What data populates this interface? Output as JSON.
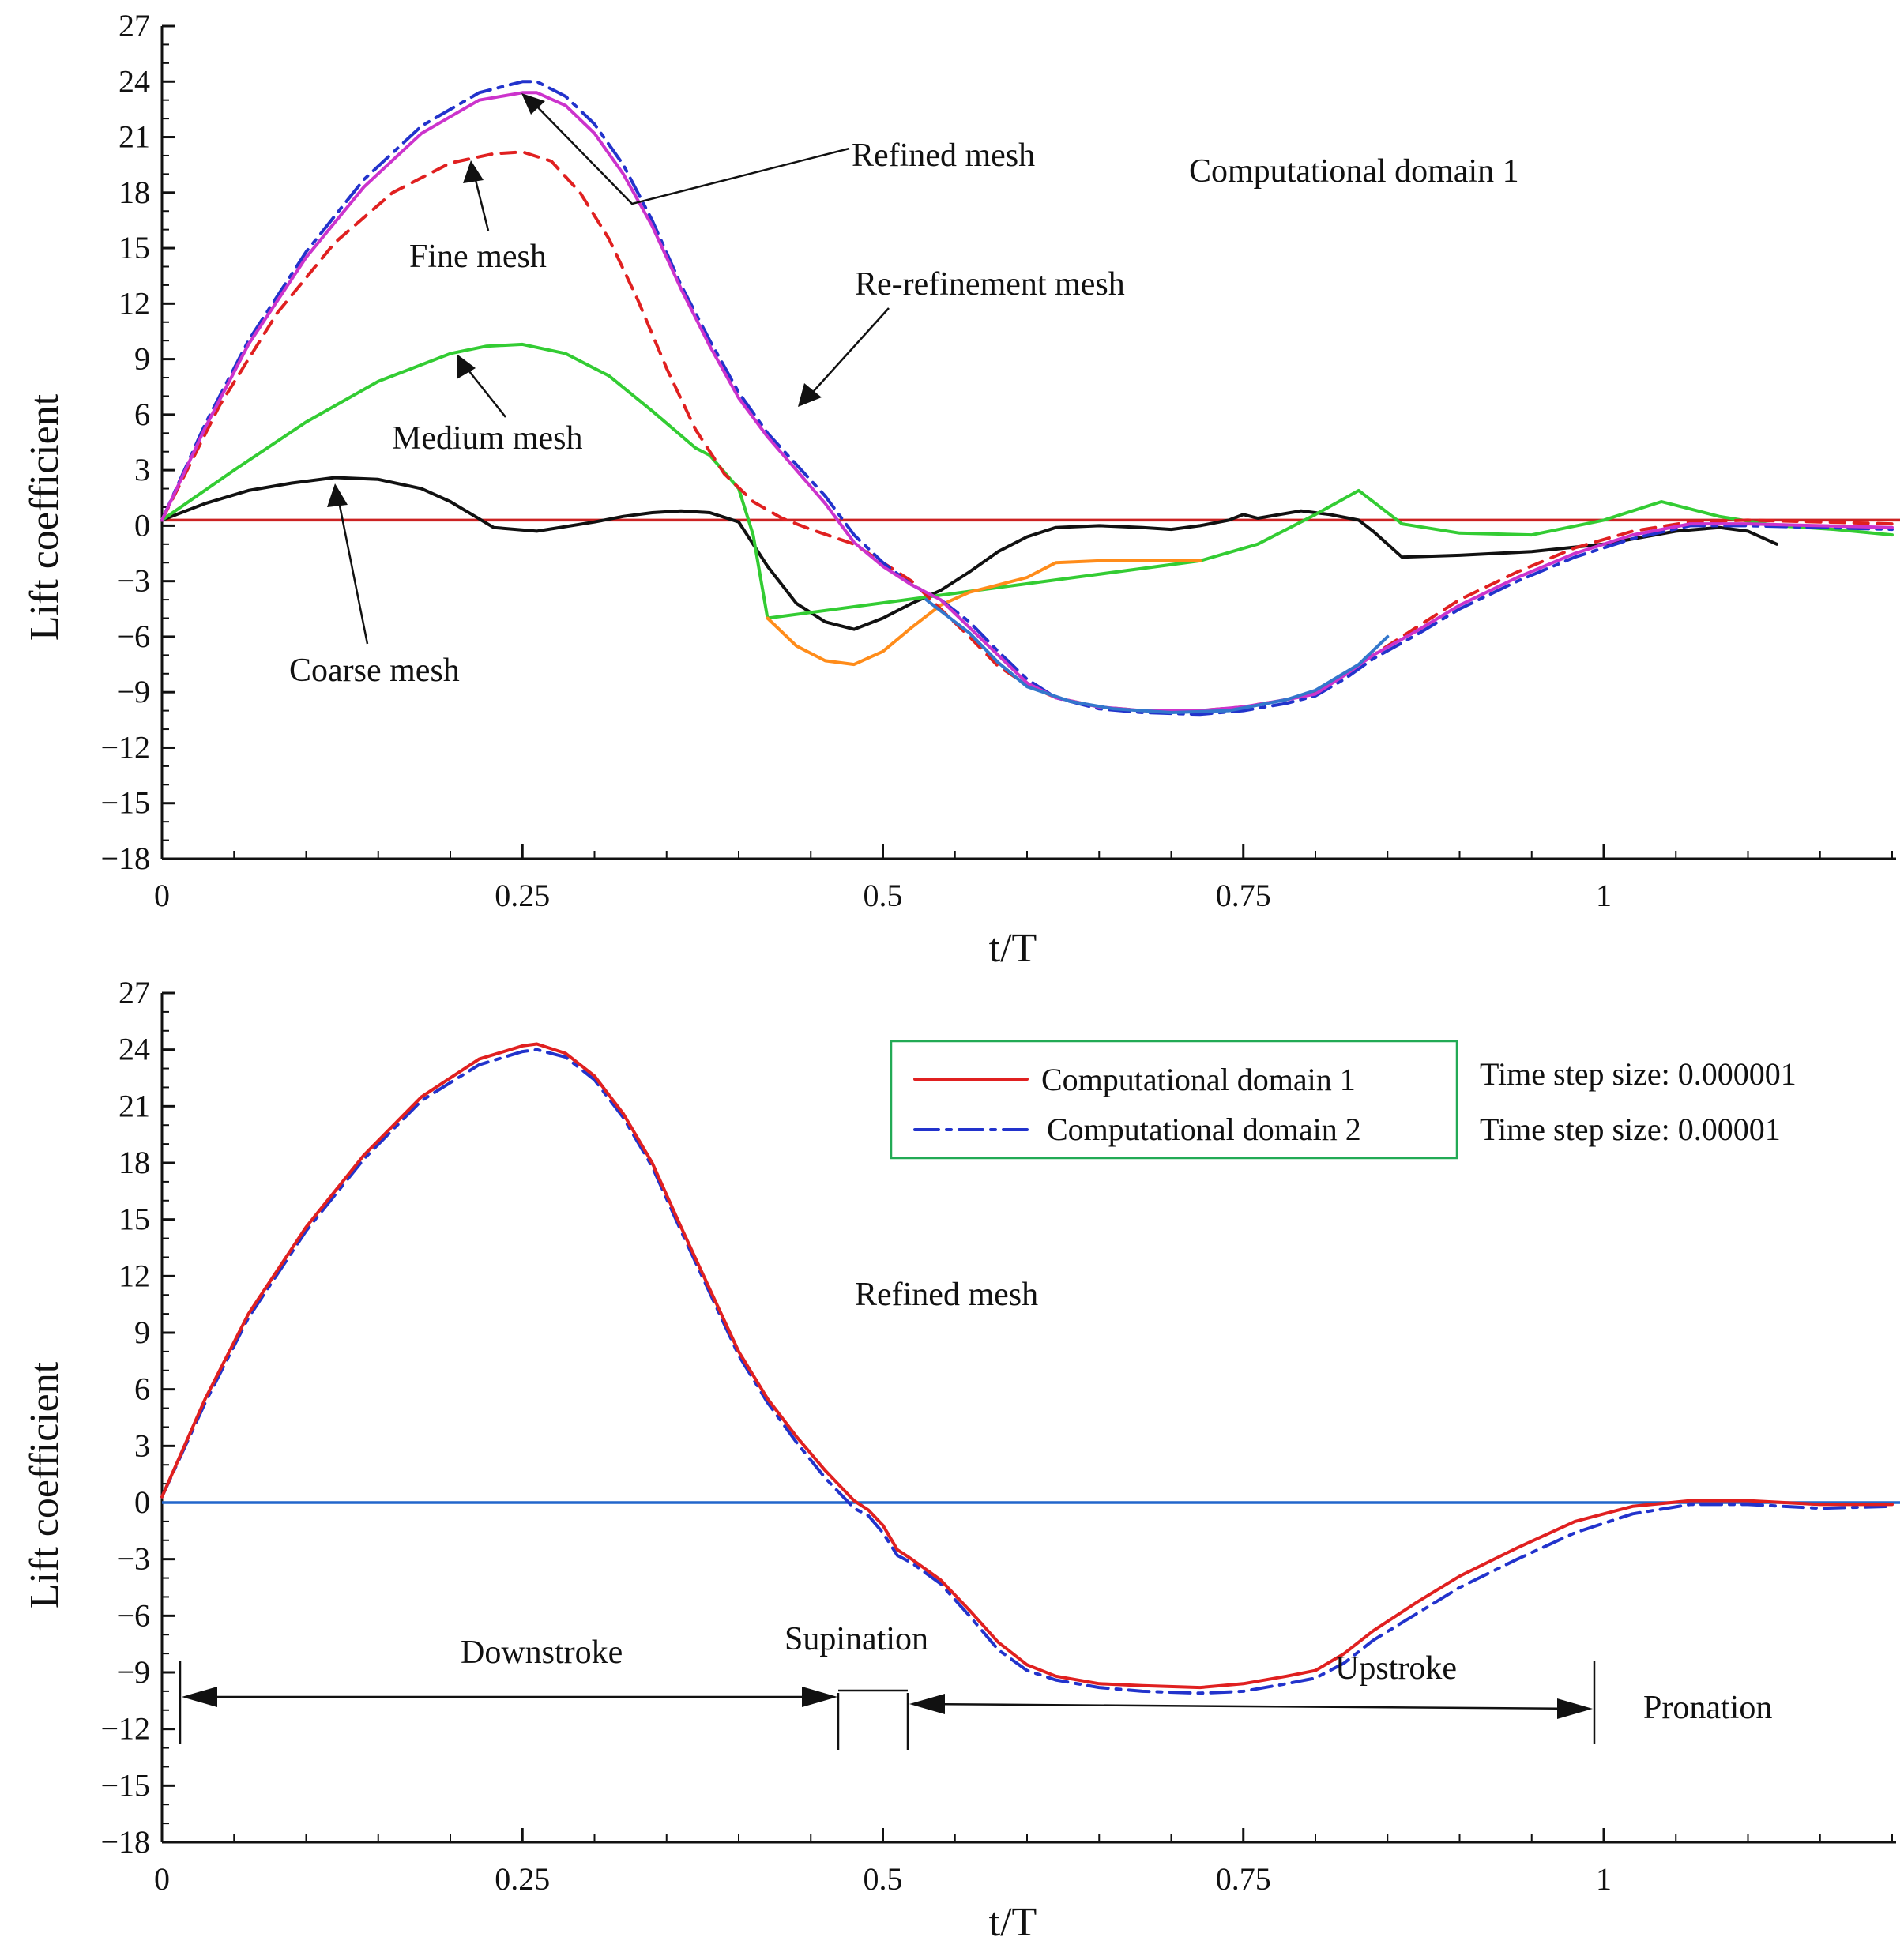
{
  "colors": {
    "coarse": "#111111",
    "medium": "#33cc33",
    "fine": "#e02020",
    "refined": "#cc33cc",
    "rerefined": "#2233cc",
    "orange": "#ff8c1a",
    "steelblue": "#3377cc",
    "zero_top": "#cc2222",
    "zero_bottom": "#2266cc",
    "legend_border": "#22aa55"
  },
  "chart_data": [
    {
      "type": "line",
      "xlabel": "t/T",
      "ylabel": "Lift coefficient",
      "xlim": [
        0,
        1.2
      ],
      "ylim": [
        -18,
        27
      ],
      "xticks": [
        0,
        0.25,
        0.5,
        0.75,
        1
      ],
      "xtick_labels": [
        "0",
        "0.25",
        "0.5",
        "0.75",
        "1"
      ],
      "yticks": [
        -18,
        -15,
        -12,
        -9,
        -6,
        -3,
        0,
        3,
        6,
        9,
        12,
        15,
        18,
        21,
        24,
        27
      ],
      "ytick_labels": [
        "−18",
        "−15",
        "−12",
        "−9",
        "−6",
        "−3",
        "0",
        "3",
        "6",
        "9",
        "12",
        "15",
        "18",
        "21",
        "24",
        "27"
      ],
      "baseline": 0.3,
      "series": [
        {
          "key": "coarse",
          "name": "Coarse mesh",
          "style": "solid",
          "x": [
            0,
            0.03,
            0.06,
            0.09,
            0.12,
            0.15,
            0.18,
            0.2,
            0.215,
            0.23,
            0.26,
            0.3,
            0.32,
            0.34,
            0.36,
            0.38,
            0.4,
            0.42,
            0.44,
            0.46,
            0.48,
            0.5,
            0.52,
            0.54,
            0.56,
            0.58,
            0.6,
            0.62,
            0.65,
            0.68,
            0.7,
            0.72,
            0.74,
            0.75,
            0.76,
            0.79,
            0.81,
            0.83,
            0.84,
            0.85,
            0.86,
            0.9,
            0.95,
            1.0,
            1.05,
            1.08,
            1.1,
            1.12
          ],
          "y": [
            0.3,
            1.2,
            1.9,
            2.3,
            2.6,
            2.5,
            2.0,
            1.3,
            0.6,
            -0.1,
            -0.3,
            0.2,
            0.5,
            0.7,
            0.8,
            0.7,
            0.2,
            -2.2,
            -4.2,
            -5.2,
            -5.6,
            -5.0,
            -4.2,
            -3.5,
            -2.5,
            -1.4,
            -0.6,
            -0.1,
            0.0,
            -0.1,
            -0.2,
            0.0,
            0.3,
            0.6,
            0.4,
            0.8,
            0.6,
            0.3,
            -0.3,
            -1.0,
            -1.7,
            -1.6,
            -1.4,
            -1.0,
            -0.3,
            -0.1,
            -0.3,
            -1.0
          ]
        },
        {
          "key": "medium",
          "name": "Medium mesh",
          "style": "solid",
          "x": [
            0,
            0.05,
            0.1,
            0.15,
            0.2,
            0.225,
            0.25,
            0.28,
            0.31,
            0.34,
            0.37,
            0.38,
            0.4,
            0.41,
            0.42,
            0.72,
            0.76,
            0.8,
            0.83,
            0.86,
            0.9,
            0.95,
            1.0,
            1.04,
            1.08,
            1.12,
            1.16,
            1.2
          ],
          "y": [
            0.3,
            3.0,
            5.6,
            7.8,
            9.3,
            9.7,
            9.8,
            9.3,
            8.1,
            6.2,
            4.2,
            3.8,
            2.0,
            -0.5,
            -5.0,
            -1.9,
            -1.0,
            0.6,
            1.9,
            0.1,
            -0.4,
            -0.5,
            0.3,
            1.3,
            0.5,
            0.0,
            -0.2,
            -0.5
          ]
        },
        {
          "key": "orange",
          "name": "",
          "style": "solid",
          "x": [
            0.42,
            0.44,
            0.46,
            0.48,
            0.5,
            0.52,
            0.54,
            0.56,
            0.58,
            0.6,
            0.62,
            0.65,
            0.68,
            0.7,
            0.72
          ],
          "y": [
            -5.0,
            -6.5,
            -7.3,
            -7.5,
            -6.8,
            -5.5,
            -4.3,
            -3.6,
            -3.2,
            -2.8,
            -2.0,
            -1.9,
            -1.9,
            -1.9,
            -1.9
          ]
        },
        {
          "key": "fine",
          "name": "Fine mesh",
          "style": "dashed",
          "x": [
            0,
            0.04,
            0.08,
            0.12,
            0.16,
            0.2,
            0.23,
            0.25,
            0.27,
            0.29,
            0.31,
            0.33,
            0.35,
            0.37,
            0.39,
            0.41,
            0.43,
            0.45,
            0.48,
            0.5,
            0.52,
            0.54,
            0.56,
            0.58,
            0.6,
            0.62,
            0.65,
            0.68,
            0.72,
            0.75,
            0.78,
            0.8,
            0.82,
            0.84,
            0.87,
            0.9,
            0.94,
            0.98,
            1.02,
            1.06,
            1.1,
            1.15,
            1.2
          ],
          "y": [
            0.3,
            6.5,
            11.5,
            15.3,
            18.0,
            19.6,
            20.1,
            20.2,
            19.7,
            18.0,
            15.5,
            12.2,
            8.5,
            5.2,
            2.8,
            1.3,
            0.4,
            -0.2,
            -1.0,
            -2.0,
            -3.0,
            -4.5,
            -6.0,
            -7.6,
            -8.6,
            -9.3,
            -9.8,
            -10.0,
            -10.0,
            -9.8,
            -9.4,
            -9.0,
            -8.0,
            -7.0,
            -5.5,
            -4.0,
            -2.5,
            -1.2,
            -0.3,
            0.2,
            0.3,
            0.2,
            0.1
          ]
        },
        {
          "key": "rerefined",
          "name": "Re-refinement mesh",
          "style": "dashdot",
          "x": [
            0,
            0.03,
            0.06,
            0.1,
            0.14,
            0.18,
            0.22,
            0.25,
            0.26,
            0.28,
            0.3,
            0.32,
            0.34,
            0.36,
            0.38,
            0.4,
            0.42,
            0.44,
            0.46,
            0.48,
            0.5,
            0.52,
            0.54,
            0.56,
            0.58,
            0.6,
            0.62,
            0.65,
            0.68,
            0.72,
            0.75,
            0.78,
            0.8,
            0.82,
            0.84,
            0.87,
            0.9,
            0.94,
            0.98,
            1.02,
            1.06,
            1.1,
            1.15,
            1.2
          ],
          "y": [
            0.3,
            5.5,
            10.0,
            14.8,
            18.7,
            21.6,
            23.4,
            24.0,
            24.0,
            23.2,
            21.7,
            19.5,
            16.5,
            13.0,
            10.0,
            7.2,
            5.0,
            3.3,
            1.6,
            -0.5,
            -2.0,
            -3.2,
            -4.0,
            -5.2,
            -6.8,
            -8.3,
            -9.3,
            -9.9,
            -10.1,
            -10.2,
            -10.0,
            -9.6,
            -9.2,
            -8.3,
            -7.2,
            -5.9,
            -4.5,
            -3.0,
            -1.7,
            -0.7,
            0.0,
            0.0,
            -0.1,
            -0.2
          ]
        },
        {
          "key": "refined",
          "name": "Refined mesh",
          "style": "solid",
          "x": [
            0,
            0.03,
            0.06,
            0.1,
            0.14,
            0.18,
            0.22,
            0.25,
            0.26,
            0.28,
            0.3,
            0.32,
            0.34,
            0.36,
            0.38,
            0.4,
            0.42,
            0.44,
            0.46,
            0.48,
            0.5,
            0.52,
            0.54,
            0.56,
            0.58,
            0.6,
            0.62,
            0.65,
            0.68,
            0.72,
            0.75,
            0.78,
            0.8,
            0.82,
            0.84,
            0.87,
            0.9,
            0.94,
            0.98,
            1.02,
            1.06,
            1.1,
            1.15,
            1.2
          ],
          "y": [
            0.3,
            5.3,
            9.8,
            14.5,
            18.3,
            21.2,
            23.0,
            23.4,
            23.4,
            22.7,
            21.2,
            19.0,
            16.2,
            12.8,
            9.7,
            6.9,
            4.8,
            3.0,
            1.2,
            -0.9,
            -2.2,
            -3.2,
            -4.0,
            -5.5,
            -7.0,
            -8.5,
            -9.3,
            -9.8,
            -10.0,
            -10.0,
            -9.8,
            -9.4,
            -9.1,
            -8.1,
            -7.0,
            -5.7,
            -4.3,
            -2.8,
            -1.5,
            -0.5,
            0.1,
            0.1,
            0.0,
            -0.1
          ]
        },
        {
          "key": "steelblue",
          "name": "",
          "style": "solid",
          "x": [
            0.53,
            0.56,
            0.58,
            0.6,
            0.63,
            0.66,
            0.7,
            0.74,
            0.78,
            0.8,
            0.83,
            0.85
          ],
          "y": [
            -4.0,
            -5.8,
            -7.4,
            -8.7,
            -9.5,
            -9.9,
            -10.1,
            -10.0,
            -9.4,
            -8.9,
            -7.5,
            -6.0
          ]
        }
      ],
      "annotations": [
        {
          "text": "Refined mesh",
          "target": [
            0.25,
            23.4
          ]
        },
        {
          "text": "Fine mesh",
          "target": [
            0.22,
            19.8
          ]
        },
        {
          "text": "Re-refinement mesh",
          "target": [
            0.44,
            6.5
          ]
        },
        {
          "text": "Medium mesh",
          "target": [
            0.205,
            9.5
          ]
        },
        {
          "text": "Coarse mesh",
          "target": [
            0.12,
            2.3
          ]
        },
        {
          "text": "Computational domain 1",
          "target": null
        }
      ]
    },
    {
      "type": "line",
      "xlabel": "t/T",
      "ylabel": "Lift coefficient",
      "xlim": [
        0,
        1.2
      ],
      "ylim": [
        -18,
        27
      ],
      "xticks": [
        0,
        0.25,
        0.5,
        0.75,
        1
      ],
      "xtick_labels": [
        "0",
        "0.25",
        "0.5",
        "0.75",
        "1"
      ],
      "yticks": [
        -18,
        -15,
        -12,
        -9,
        -6,
        -3,
        0,
        3,
        6,
        9,
        12,
        15,
        18,
        21,
        24,
        27
      ],
      "ytick_labels": [
        "−18",
        "−15",
        "−12",
        "−9",
        "−6",
        "−3",
        "0",
        "3",
        "6",
        "9",
        "12",
        "15",
        "18",
        "21",
        "24",
        "27"
      ],
      "baseline": 0,
      "series": [
        {
          "key": "dom2",
          "name": "Computational domain 2",
          "style": "dashdot",
          "x": [
            0,
            0.03,
            0.06,
            0.1,
            0.14,
            0.18,
            0.22,
            0.25,
            0.26,
            0.28,
            0.3,
            0.32,
            0.34,
            0.36,
            0.38,
            0.4,
            0.42,
            0.44,
            0.46,
            0.48,
            0.49,
            0.5,
            0.51,
            0.52,
            0.54,
            0.56,
            0.58,
            0.6,
            0.62,
            0.65,
            0.68,
            0.72,
            0.75,
            0.78,
            0.8,
            0.82,
            0.84,
            0.87,
            0.9,
            0.94,
            0.98,
            1.02,
            1.06,
            1.1,
            1.15,
            1.2
          ],
          "y": [
            0.3,
            5.3,
            9.8,
            14.4,
            18.2,
            21.3,
            23.2,
            23.9,
            24.0,
            23.6,
            22.4,
            20.4,
            17.8,
            14.4,
            11.1,
            7.8,
            5.3,
            3.2,
            1.3,
            -0.3,
            -0.7,
            -1.6,
            -2.8,
            -3.2,
            -4.3,
            -6.0,
            -7.8,
            -8.9,
            -9.4,
            -9.8,
            -10.0,
            -10.1,
            -10.0,
            -9.6,
            -9.3,
            -8.5,
            -7.3,
            -5.9,
            -4.5,
            -3.0,
            -1.6,
            -0.6,
            -0.1,
            -0.1,
            -0.3,
            -0.2
          ]
        },
        {
          "key": "dom1",
          "name": "Computational domain 1",
          "style": "solid",
          "x": [
            0,
            0.03,
            0.06,
            0.1,
            0.14,
            0.18,
            0.22,
            0.25,
            0.26,
            0.28,
            0.3,
            0.32,
            0.34,
            0.36,
            0.38,
            0.4,
            0.42,
            0.44,
            0.46,
            0.48,
            0.49,
            0.5,
            0.51,
            0.52,
            0.54,
            0.56,
            0.58,
            0.6,
            0.62,
            0.65,
            0.68,
            0.72,
            0.75,
            0.78,
            0.8,
            0.82,
            0.84,
            0.87,
            0.9,
            0.94,
            0.98,
            1.02,
            1.06,
            1.1,
            1.15,
            1.2
          ],
          "y": [
            0.3,
            5.5,
            10.0,
            14.6,
            18.4,
            21.5,
            23.5,
            24.2,
            24.3,
            23.8,
            22.6,
            20.6,
            18.0,
            14.6,
            11.3,
            8.0,
            5.5,
            3.5,
            1.7,
            0.1,
            -0.4,
            -1.2,
            -2.5,
            -3.0,
            -4.1,
            -5.7,
            -7.4,
            -8.6,
            -9.2,
            -9.6,
            -9.7,
            -9.8,
            -9.6,
            -9.2,
            -8.9,
            -8.0,
            -6.8,
            -5.3,
            -3.9,
            -2.4,
            -1.0,
            -0.2,
            0.1,
            0.1,
            -0.1,
            -0.1
          ]
        }
      ],
      "legend": {
        "position": "top-right",
        "entries": [
          "Computational domain 1",
          "Computational domain 2"
        ],
        "time_step_labels": [
          "Time step size: 0.000001",
          "Time step size: 0.00001"
        ]
      },
      "annotations": [
        {
          "text": "Refined mesh"
        },
        {
          "text": "Downstroke"
        },
        {
          "text": "Supination"
        },
        {
          "text": "Upstroke"
        },
        {
          "text": "Pronation"
        }
      ],
      "phases": [
        {
          "label": "Downstroke",
          "from": 0.013,
          "to": 0.472
        },
        {
          "label": "Supination",
          "from": 0.472,
          "to": 0.52
        },
        {
          "label": "Upstroke",
          "from": 0.52,
          "to": 0.995
        },
        {
          "label": "Pronation",
          "from": 0.995,
          "to": 1.2
        }
      ]
    }
  ]
}
